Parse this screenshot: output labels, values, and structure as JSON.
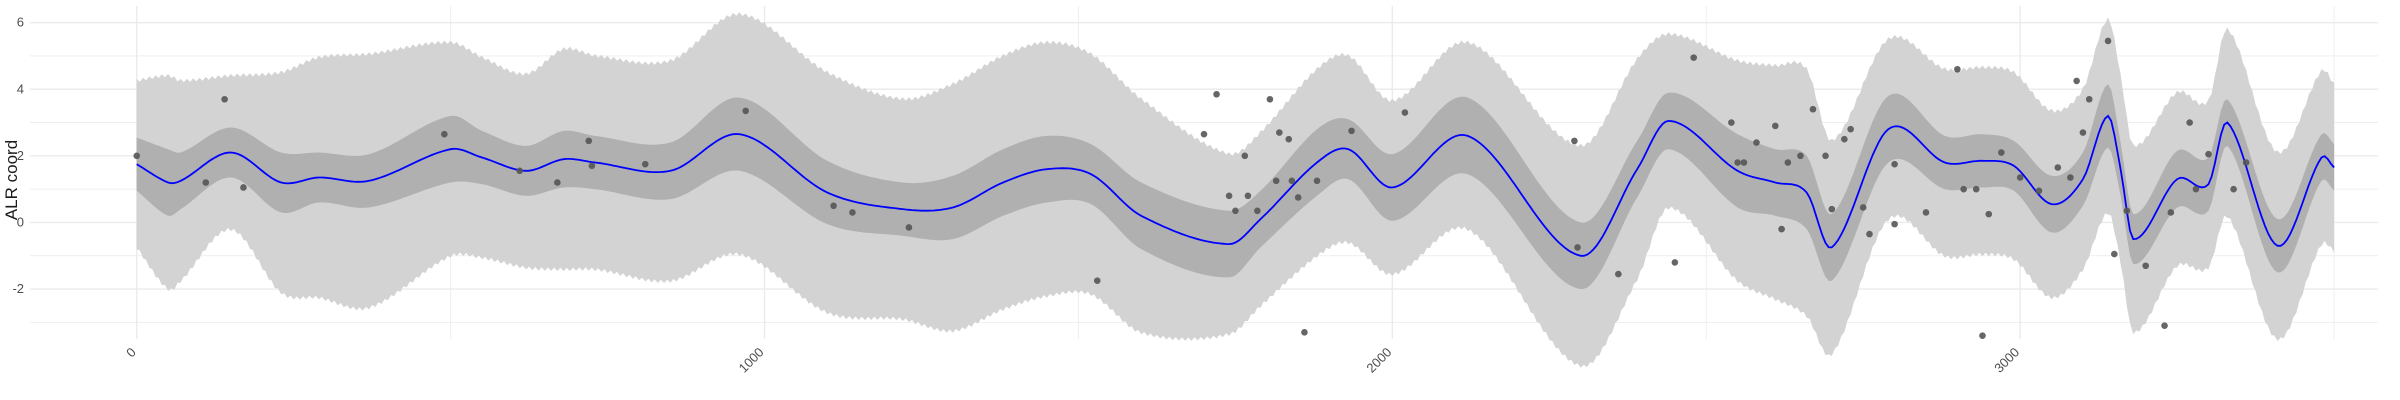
{
  "chart_data": {
    "type": "line",
    "title": "",
    "xlabel": "",
    "ylabel": "ALR coord",
    "xlim": [
      -170,
      3570
    ],
    "ylim": [
      -3.5,
      6.5
    ],
    "x_ticks": [
      0,
      1000,
      2000,
      3000
    ],
    "x_tick_labels": [
      "0",
      "1000",
      "2000",
      "3000"
    ],
    "y_ticks": [
      -2,
      0,
      2,
      4,
      6
    ],
    "y_tick_labels": [
      "-2",
      "0",
      "2",
      "4",
      "6"
    ],
    "grid": true,
    "legend": "none",
    "colors": {
      "mean_line": "#0000ff",
      "inner_band": "#b0b0b0",
      "outer_band": "#d3d3d3",
      "points": "#555555",
      "grid": "#ebebeb"
    },
    "series": [
      {
        "kind": "mean",
        "x": [
          0,
          50,
          70,
          150,
          230,
          290,
          370,
          500,
          550,
          620,
          680,
          730,
          850,
          960,
          1100,
          1220,
          1300,
          1380,
          1450,
          1520,
          1600,
          1740,
          1790,
          1880,
          1930,
          2000,
          2120,
          2300,
          2390,
          2440,
          2550,
          2610,
          2660,
          2700,
          2790,
          2880,
          2940,
          2990,
          3050,
          3100,
          3140,
          3160,
          3180,
          3250,
          3300,
          3330,
          3410,
          3480,
          3500
        ],
        "y": [
          1.75,
          1.2,
          1.25,
          2.1,
          1.2,
          1.35,
          1.25,
          2.2,
          1.95,
          1.55,
          1.9,
          1.8,
          1.55,
          2.65,
          0.9,
          0.4,
          0.45,
          1.2,
          1.6,
          1.45,
          0.2,
          -0.65,
          0.1,
          1.8,
          2.2,
          1.05,
          2.6,
          -1.0,
          1.6,
          3.05,
          1.55,
          1.2,
          0.9,
          -0.75,
          2.8,
          1.8,
          1.85,
          1.7,
          0.55,
          1.3,
          3.2,
          1.6,
          -0.5,
          1.3,
          1.15,
          3.0,
          -0.7,
          1.95,
          1.65
        ]
      },
      {
        "kind": "inner_band",
        "x": [
          0,
          50,
          70,
          150,
          230,
          290,
          370,
          500,
          550,
          620,
          680,
          730,
          850,
          960,
          1100,
          1220,
          1300,
          1380,
          1450,
          1520,
          1600,
          1740,
          1790,
          1880,
          1930,
          2000,
          2120,
          2300,
          2390,
          2440,
          2550,
          2610,
          2660,
          2700,
          2790,
          2880,
          2940,
          2990,
          3050,
          3100,
          3140,
          3160,
          3180,
          3250,
          3300,
          3330,
          3410,
          3480,
          3500
        ],
        "half_width": [
          0.8,
          1.0,
          0.85,
          0.75,
          0.9,
          0.75,
          0.8,
          1.0,
          0.8,
          0.75,
          0.85,
          0.8,
          0.85,
          1.1,
          0.95,
          0.8,
          0.95,
          1.0,
          1.0,
          0.9,
          1.0,
          1.0,
          0.85,
          1.0,
          0.9,
          1.0,
          1.15,
          1.0,
          0.85,
          0.85,
          1.1,
          1.0,
          1.1,
          1.0,
          1.0,
          0.8,
          0.8,
          0.75,
          0.85,
          0.8,
          0.95,
          0.8,
          0.75,
          0.85,
          0.8,
          0.7,
          0.8,
          0.7,
          0.7
        ]
      },
      {
        "kind": "outer_band",
        "x": [
          0,
          50,
          70,
          150,
          230,
          290,
          370,
          500,
          550,
          620,
          680,
          730,
          850,
          960,
          1100,
          1220,
          1300,
          1380,
          1450,
          1520,
          1600,
          1740,
          1790,
          1880,
          1930,
          2000,
          2120,
          2300,
          2390,
          2440,
          2550,
          2610,
          2660,
          2700,
          2790,
          2880,
          2940,
          2990,
          3050,
          3100,
          3140,
          3160,
          3180,
          3250,
          3300,
          3330,
          3410,
          3480,
          3500
        ],
        "half_width": [
          2.5,
          3.2,
          3.0,
          2.3,
          3.3,
          3.6,
          3.8,
          3.2,
          3.0,
          2.9,
          3.3,
          3.2,
          3.3,
          3.6,
          3.6,
          3.3,
          3.7,
          3.8,
          3.8,
          3.6,
          3.5,
          2.7,
          2.6,
          2.8,
          2.8,
          2.6,
          2.8,
          3.3,
          3.3,
          2.6,
          3.3,
          3.5,
          3.7,
          3.2,
          2.7,
          2.8,
          2.8,
          2.8,
          2.8,
          2.7,
          2.9,
          2.8,
          2.8,
          2.6,
          2.5,
          2.8,
          2.8,
          2.6,
          2.5
        ]
      },
      {
        "kind": "observations",
        "x": [
          0,
          110,
          140,
          170,
          490,
          610,
          670,
          720,
          725,
          810,
          970,
          1110,
          1140,
          1230,
          1530,
          1700,
          1720,
          1740,
          1750,
          1765,
          1770,
          1785,
          1805,
          1815,
          1820,
          1835,
          1840,
          1850,
          1860,
          1880,
          1935,
          2020,
          2290,
          2295,
          2360,
          2450,
          2480,
          2540,
          2550,
          2560,
          2580,
          2610,
          2620,
          2630,
          2650,
          2670,
          2690,
          2700,
          2720,
          2730,
          2750,
          2760,
          2800,
          2800,
          2850,
          2900,
          2910,
          2930,
          2940,
          2950,
          2970,
          3000,
          3030,
          3060,
          3080,
          3090,
          3100,
          3110,
          3140,
          3150,
          3170,
          3200,
          3230,
          3240,
          3270,
          3280,
          3300,
          3340,
          3360
        ],
        "y": [
          2.0,
          1.2,
          3.7,
          1.05,
          2.65,
          1.55,
          1.2,
          2.45,
          1.7,
          1.75,
          3.35,
          0.5,
          0.3,
          -0.15,
          -1.75,
          2.65,
          3.85,
          0.8,
          0.35,
          2.0,
          0.8,
          0.35,
          3.7,
          1.25,
          2.7,
          2.5,
          1.25,
          0.75,
          -3.3,
          1.25,
          2.75,
          3.3,
          2.45,
          -0.75,
          -1.55,
          -1.2,
          4.95,
          3.0,
          1.8,
          1.8,
          2.4,
          2.9,
          -0.2,
          1.8,
          2.0,
          3.4,
          2.0,
          0.4,
          2.5,
          2.8,
          0.45,
          -0.35,
          -0.05,
          1.75,
          0.3,
          4.6,
          1.0,
          1.0,
          -3.4,
          0.25,
          2.1,
          1.35,
          0.95,
          1.65,
          1.35,
          4.25,
          2.7,
          3.7,
          5.45,
          -0.95,
          0.35,
          -1.3,
          -3.1,
          0.3,
          3.0,
          1.0,
          2.05,
          1.0,
          1.8
        ]
      }
    ]
  }
}
